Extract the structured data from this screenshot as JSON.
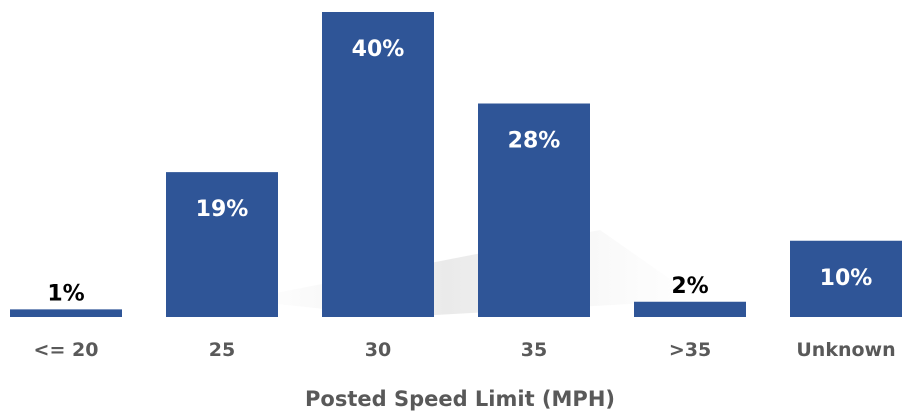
{
  "chart_data": {
    "type": "bar",
    "title": "",
    "xlabel": "Posted Speed Limit (MPH)",
    "ylabel": "",
    "categories": [
      "<= 20",
      "25",
      "30",
      "35",
      ">35",
      "Unknown"
    ],
    "values": [
      1,
      19,
      40,
      28,
      2,
      10
    ],
    "value_labels": [
      "1%",
      "19%",
      "40%",
      "28%",
      "2%",
      "10%"
    ],
    "ylim": [
      0,
      40
    ],
    "unit": "%",
    "grid": false,
    "legend": "none",
    "colors": {
      "bar": "#2F5597",
      "text_axis": "#595959"
    }
  }
}
